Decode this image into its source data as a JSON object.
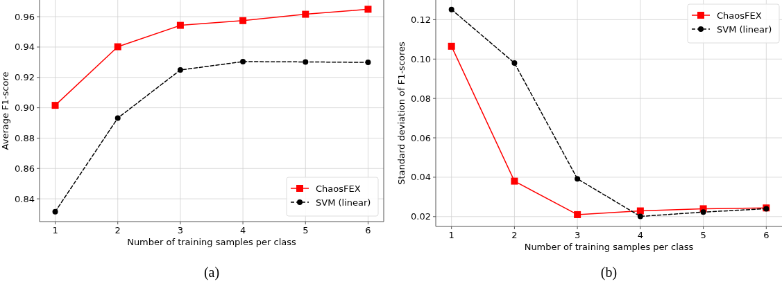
{
  "chart_data": [
    {
      "type": "line",
      "xlabel": "Number of training samples per class",
      "ylabel": "Average F1-score",
      "annotations": [
        "(a)"
      ],
      "x": [
        1,
        2,
        3,
        4,
        5,
        6
      ],
      "xlim": [
        0.75,
        6.25
      ],
      "xticks": [
        1,
        2,
        3,
        4,
        5,
        6
      ],
      "ylim": [
        0.825,
        0.971
      ],
      "yticks": [
        {
          "value": 0.84,
          "label": "0.84"
        },
        {
          "value": 0.86,
          "label": "0.86"
        },
        {
          "value": 0.88,
          "label": "0.88"
        },
        {
          "value": 0.9,
          "label": "0.90"
        },
        {
          "value": 0.92,
          "label": "0.92"
        },
        {
          "value": 0.94,
          "label": "0.94"
        },
        {
          "value": 0.96,
          "label": "0.96"
        }
      ],
      "grid": true,
      "legend": "bottom right",
      "series": [
        {
          "name": "ChaosFEX",
          "color": "#ff0000",
          "marker": "square",
          "line_style": "solid",
          "values": [
            0.9016,
            0.9402,
            0.9543,
            0.9574,
            0.9616,
            0.9649
          ]
        },
        {
          "name": "SVM (linear)",
          "color": "#000000",
          "marker": "circle",
          "line_style": "dashed",
          "values": [
            0.8315,
            0.8932,
            0.9249,
            0.9304,
            0.9302,
            0.9299
          ]
        }
      ]
    },
    {
      "type": "line",
      "xlabel": "Number of training samples per class",
      "ylabel": "Standard deviation of F1-scores",
      "annotations": [
        "(b)"
      ],
      "x": [
        1,
        2,
        3,
        4,
        5,
        6
      ],
      "xlim": [
        0.75,
        6.25
      ],
      "xticks": [
        1,
        2,
        3,
        4,
        5,
        6
      ],
      "ylim": [
        0.015,
        0.13
      ],
      "yticks": [
        {
          "value": 0.02,
          "label": "0.02"
        },
        {
          "value": 0.04,
          "label": "0.04"
        },
        {
          "value": 0.06,
          "label": "0.06"
        },
        {
          "value": 0.08,
          "label": "0.08"
        },
        {
          "value": 0.1,
          "label": "0.10"
        },
        {
          "value": 0.12,
          "label": "0.12"
        }
      ],
      "grid": true,
      "legend": "top right",
      "series": [
        {
          "name": "ChaosFEX",
          "color": "#ff0000",
          "marker": "square",
          "line_style": "solid",
          "values": [
            0.1065,
            0.038,
            0.021,
            0.0229,
            0.024,
            0.0244
          ]
        },
        {
          "name": "SVM (linear)",
          "color": "#000000",
          "marker": "circle",
          "line_style": "dashed",
          "values": [
            0.1252,
            0.098,
            0.0392,
            0.0201,
            0.0223,
            0.024
          ]
        }
      ]
    }
  ]
}
